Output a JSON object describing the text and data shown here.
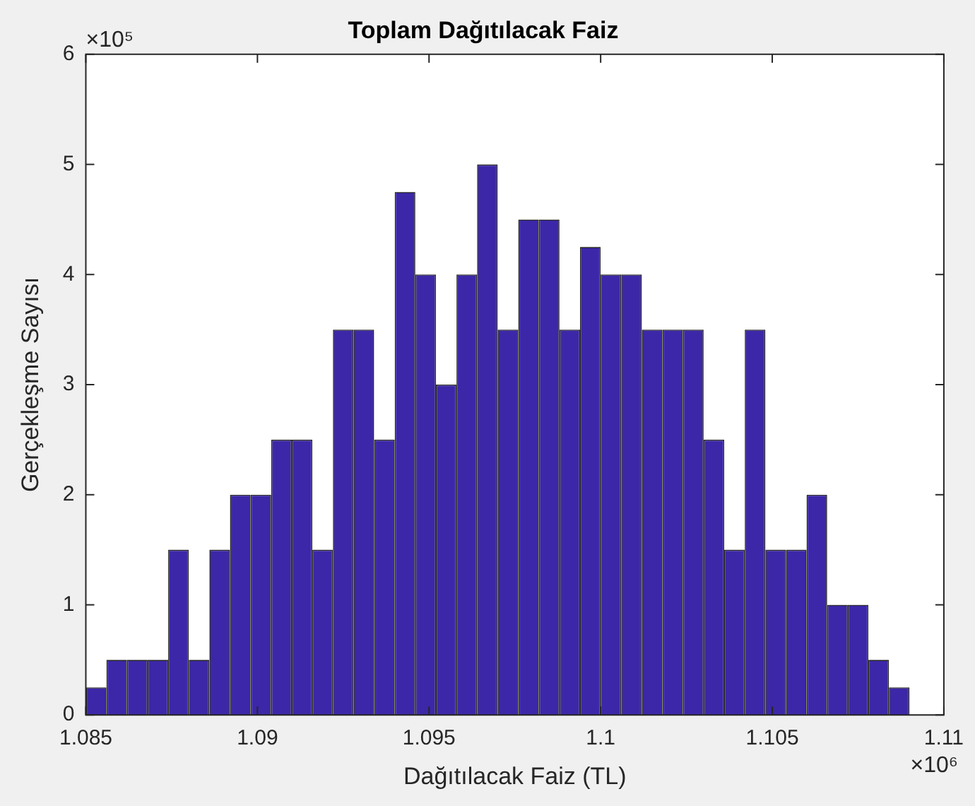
{
  "chart_data": {
    "type": "histogram",
    "title": "Toplam Dağıtılacak Faiz",
    "xlabel": "Dağıtılacak Faiz (TL)",
    "ylabel": "Gerçekleşme Sayısı",
    "bins": [
      1.085,
      1.0856,
      1.0862,
      1.0868,
      1.0874,
      1.088,
      1.0886,
      1.0892,
      1.0898,
      1.0904,
      1.091,
      1.0916,
      1.0922,
      1.0928,
      1.0934,
      1.094,
      1.0946,
      1.0952,
      1.0958,
      1.0964,
      1.097,
      1.0976,
      1.0982,
      1.0988,
      1.0994,
      1.1,
      1.1006,
      1.1012,
      1.1018,
      1.1024,
      1.103,
      1.1036,
      1.1042,
      1.1048,
      1.1054,
      1.106,
      1.1066,
      1.1072,
      1.1078,
      1.1084,
      1.109
    ],
    "values": [
      0.25,
      0.5,
      0.5,
      0.5,
      1.5,
      0.5,
      1.5,
      2,
      2,
      2.5,
      2.5,
      1.5,
      3.5,
      3.5,
      2.5,
      4.75,
      4,
      3,
      4,
      5,
      3.5,
      4.5,
      4.5,
      3.5,
      4.25,
      4,
      4,
      3.5,
      3.5,
      3.5,
      2.5,
      1.5,
      3.5,
      1.5,
      1.5,
      2,
      1,
      1,
      0.5,
      0.25
    ],
    "color": "#3c27a8",
    "xlim": [
      1.085,
      1.11
    ],
    "xticks": [
      1.085,
      1.09,
      1.095,
      1.1,
      1.105,
      1.11
    ],
    "ylim": [
      0,
      6
    ],
    "yticks": [
      0,
      1,
      2,
      3,
      4,
      5,
      6
    ],
    "annotations": [
      "×10⁵",
      "×10⁶"
    ],
    "grid": false,
    "legend": false
  }
}
